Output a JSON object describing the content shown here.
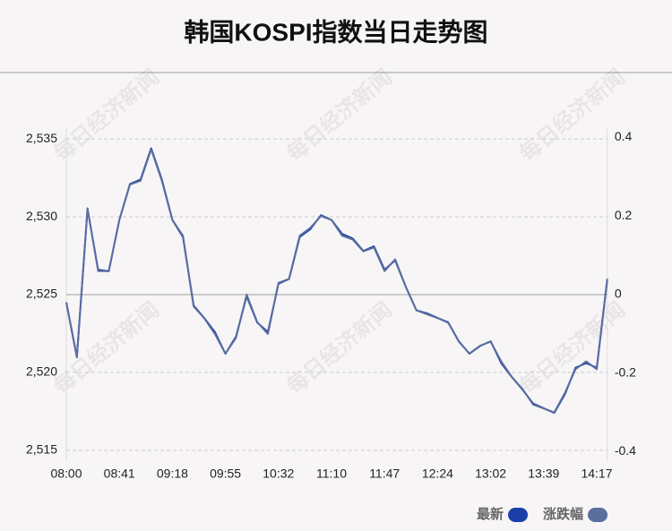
{
  "chart_data": {
    "type": "line",
    "title": "韩国KOSPI指数当日走势图",
    "watermark": "每日经济新闻",
    "categories": [
      "08:00",
      null,
      null,
      null,
      null,
      "08:41",
      null,
      null,
      null,
      null,
      "09:18",
      null,
      null,
      null,
      null,
      "09:55",
      null,
      null,
      null,
      null,
      "10:32",
      null,
      null,
      null,
      null,
      "11:10",
      null,
      null,
      null,
      null,
      "11:47",
      null,
      null,
      null,
      null,
      "12:24",
      null,
      null,
      null,
      null,
      "13:02",
      null,
      null,
      null,
      null,
      "13:39",
      null,
      null,
      null,
      null,
      "14:17",
      null
    ],
    "series": [
      {
        "name": "最新",
        "color": "#1a3fa8",
        "values": [
          2524.5,
          2521,
          2530.5,
          2526.6,
          2526.5,
          2529.8,
          2532.1,
          2532.4,
          2534.4,
          2532.4,
          2529.8,
          2528.7,
          2524.3,
          2523.5,
          2522.6,
          2521.2,
          2522.3,
          2524.9,
          2523.2,
          2522.6,
          2525.7,
          2526.0,
          2528.7,
          2529.2,
          2530.1,
          2529.8,
          2528.9,
          2528.6,
          2527.8,
          2528.1,
          2526.6,
          2527.2,
          2525.5,
          2524.0,
          2523.8,
          2523.5,
          2523.2,
          2522.0,
          2521.2,
          2521.7,
          2522.0,
          2520.6,
          2519.7,
          2518.9,
          2518.0,
          2517.7,
          2517.4,
          2518.6,
          2520.3,
          2520.6,
          2520.3,
          2526
        ]
      },
      {
        "name": "涨跌幅",
        "color": "#5b6f9e",
        "axis": "y2",
        "values": [
          -0.02,
          -0.16,
          0.22,
          0.06,
          0.06,
          0.19,
          0.28,
          0.29,
          0.37,
          0.29,
          0.19,
          0.15,
          -0.03,
          -0.06,
          -0.1,
          -0.15,
          -0.11,
          0.0,
          -0.07,
          -0.1,
          0.03,
          0.04,
          0.15,
          0.17,
          0.2,
          0.19,
          0.15,
          0.14,
          0.11,
          0.12,
          0.06,
          0.09,
          0.02,
          -0.04,
          -0.05,
          -0.06,
          -0.07,
          -0.12,
          -0.15,
          -0.13,
          -0.12,
          -0.17,
          -0.21,
          -0.24,
          -0.28,
          -0.29,
          -0.3,
          -0.25,
          -0.19,
          -0.17,
          -0.19,
          0.04
        ]
      }
    ],
    "ylim": [
      2514.3,
      2535.7
    ],
    "yticks": [
      {
        "value": 2515,
        "label": "2,515"
      },
      {
        "value": 2520,
        "label": "2,520"
      },
      {
        "value": 2525,
        "label": "2,525"
      },
      {
        "value": 2530,
        "label": "2,530"
      },
      {
        "value": 2535,
        "label": "2,535"
      }
    ],
    "y2lim": [
      -0.424,
      0.424
    ],
    "y2ticks": [
      -0.4,
      -0.2,
      0,
      0.2,
      0.4
    ],
    "grid": true
  }
}
